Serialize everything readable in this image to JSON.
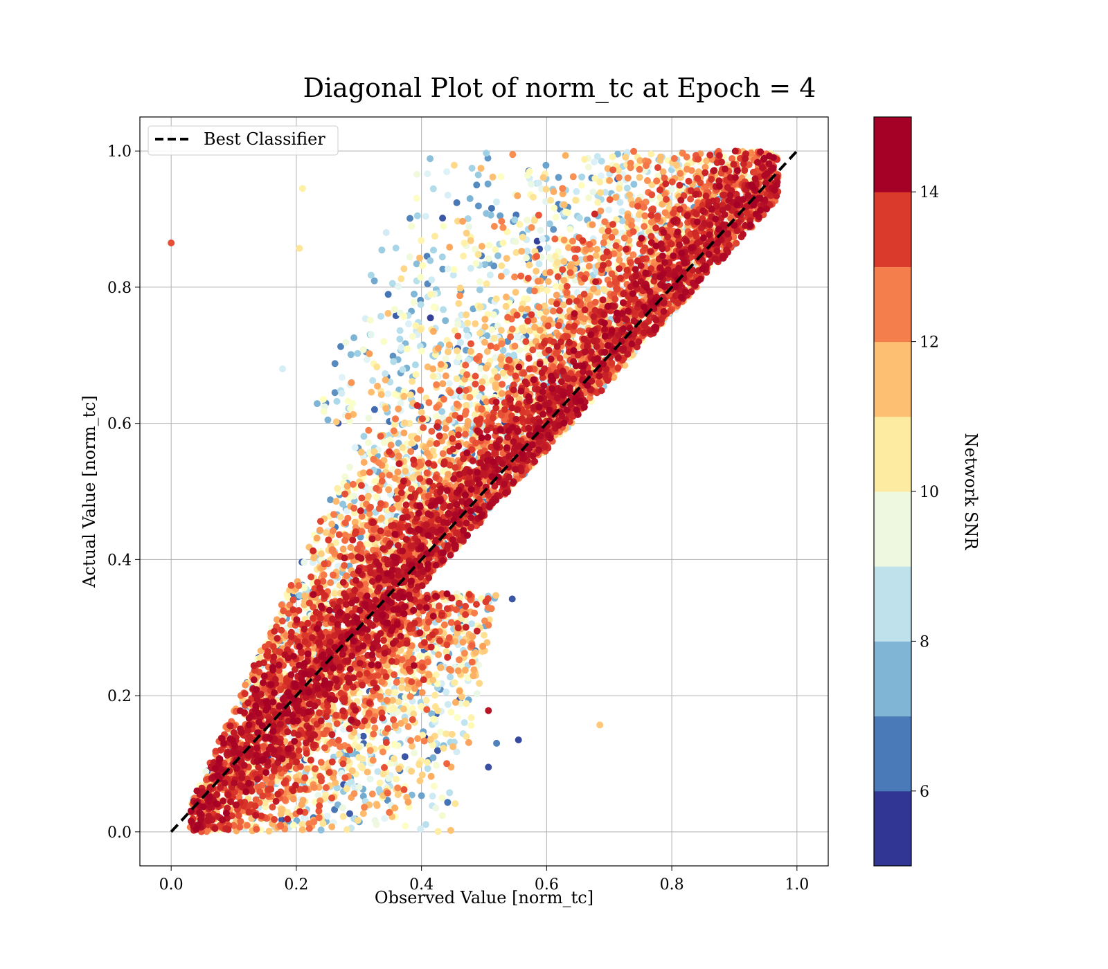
{
  "chart_data": {
    "type": "scatter",
    "title": "Diagonal Plot of norm_tc at Epoch = 4",
    "xlabel": "Observed Value [norm_tc]",
    "ylabel": "Actual Value [norm_tc]",
    "xlim": [
      -0.05,
      1.05
    ],
    "ylim": [
      -0.05,
      1.05
    ],
    "x_ticks": [
      "0.0",
      "0.2",
      "0.4",
      "0.6",
      "0.8",
      "1.0"
    ],
    "y_ticks": [
      "0.0",
      "0.2",
      "0.4",
      "0.6",
      "0.8",
      "1.0"
    ],
    "grid": true,
    "legend": {
      "position": "top-left",
      "entries": [
        {
          "label": "Best Classifier",
          "style": "black dashed line"
        }
      ]
    },
    "reference_line": {
      "name": "Best Classifier",
      "x": [
        0,
        1
      ],
      "y": [
        0,
        1
      ],
      "color": "#000000",
      "dash": true
    },
    "colorbar": {
      "label": "Network SNR",
      "range": [
        5,
        15
      ],
      "ticks": [
        "6",
        "8",
        "10",
        "12",
        "14"
      ],
      "colors": [
        "#313695",
        "#4575b4",
        "#74add1",
        "#abd9e9",
        "#e0f3f8",
        "#ffffbf",
        "#fee090",
        "#fdae61",
        "#f46d43",
        "#d73027",
        "#a50026"
      ],
      "band_colors": [
        "#313695",
        "#4a7ab7",
        "#81b5d6",
        "#bfe1ec",
        "#eef7df",
        "#fdeba2",
        "#fdbf71",
        "#f47f4c",
        "#da3a2b",
        "#a50026"
      ]
    },
    "outliers": [
      {
        "x": 0.0,
        "y": 0.865,
        "snr": 13.5
      },
      {
        "x": 0.178,
        "y": 0.68,
        "snr": 8.8
      },
      {
        "x": 0.685,
        "y": 0.157,
        "snr": 11.5
      },
      {
        "x": 0.555,
        "y": 0.135,
        "snr": 5.3
      },
      {
        "x": 0.52,
        "y": 0.13,
        "snr": 6.2
      },
      {
        "x": 0.507,
        "y": 0.095,
        "snr": 5.4
      },
      {
        "x": 0.507,
        "y": 0.178,
        "snr": 14.6
      },
      {
        "x": 0.545,
        "y": 0.342,
        "snr": 5.5
      },
      {
        "x": 0.21,
        "y": 0.945,
        "snr": 10.5
      },
      {
        "x": 0.205,
        "y": 0.857,
        "snr": 10.8
      }
    ],
    "point_cloud": {
      "description": "dense scatter of ~20000 points colored by Network SNR",
      "x_range": [
        0.02,
        0.98
      ],
      "y_range": [
        0.0,
        1.0
      ],
      "band": "points spread around the diagonal; high-SNR (dark red) points concentrate near y = x, low-SNR points spread toward the upper-left and lower-right of the band"
    }
  }
}
